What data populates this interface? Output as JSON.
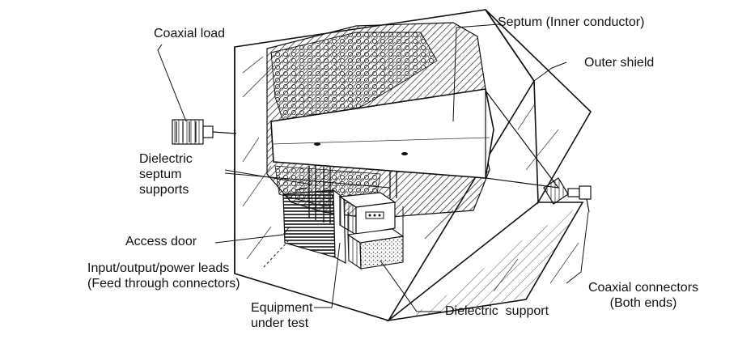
{
  "labels": {
    "coaxial_load": "Coaxial load",
    "septum": "Septum (Inner conductor)",
    "outer_shield": "Outer shield",
    "dielectric_septum_supports": [
      "Dielectric",
      "septum",
      "supports"
    ],
    "access_door": "Access door",
    "input_output_leads": [
      "Input/output/power leads",
      "(Feed through connectors)"
    ],
    "coaxial_connectors": [
      "Coaxial connectors",
      "(Both ends)"
    ],
    "equipment_under_test": [
      "Equipment",
      "under test"
    ],
    "dielectric_support": "Dielectric  support"
  },
  "colors": {
    "ink": "#111111",
    "paper": "#ffffff"
  }
}
